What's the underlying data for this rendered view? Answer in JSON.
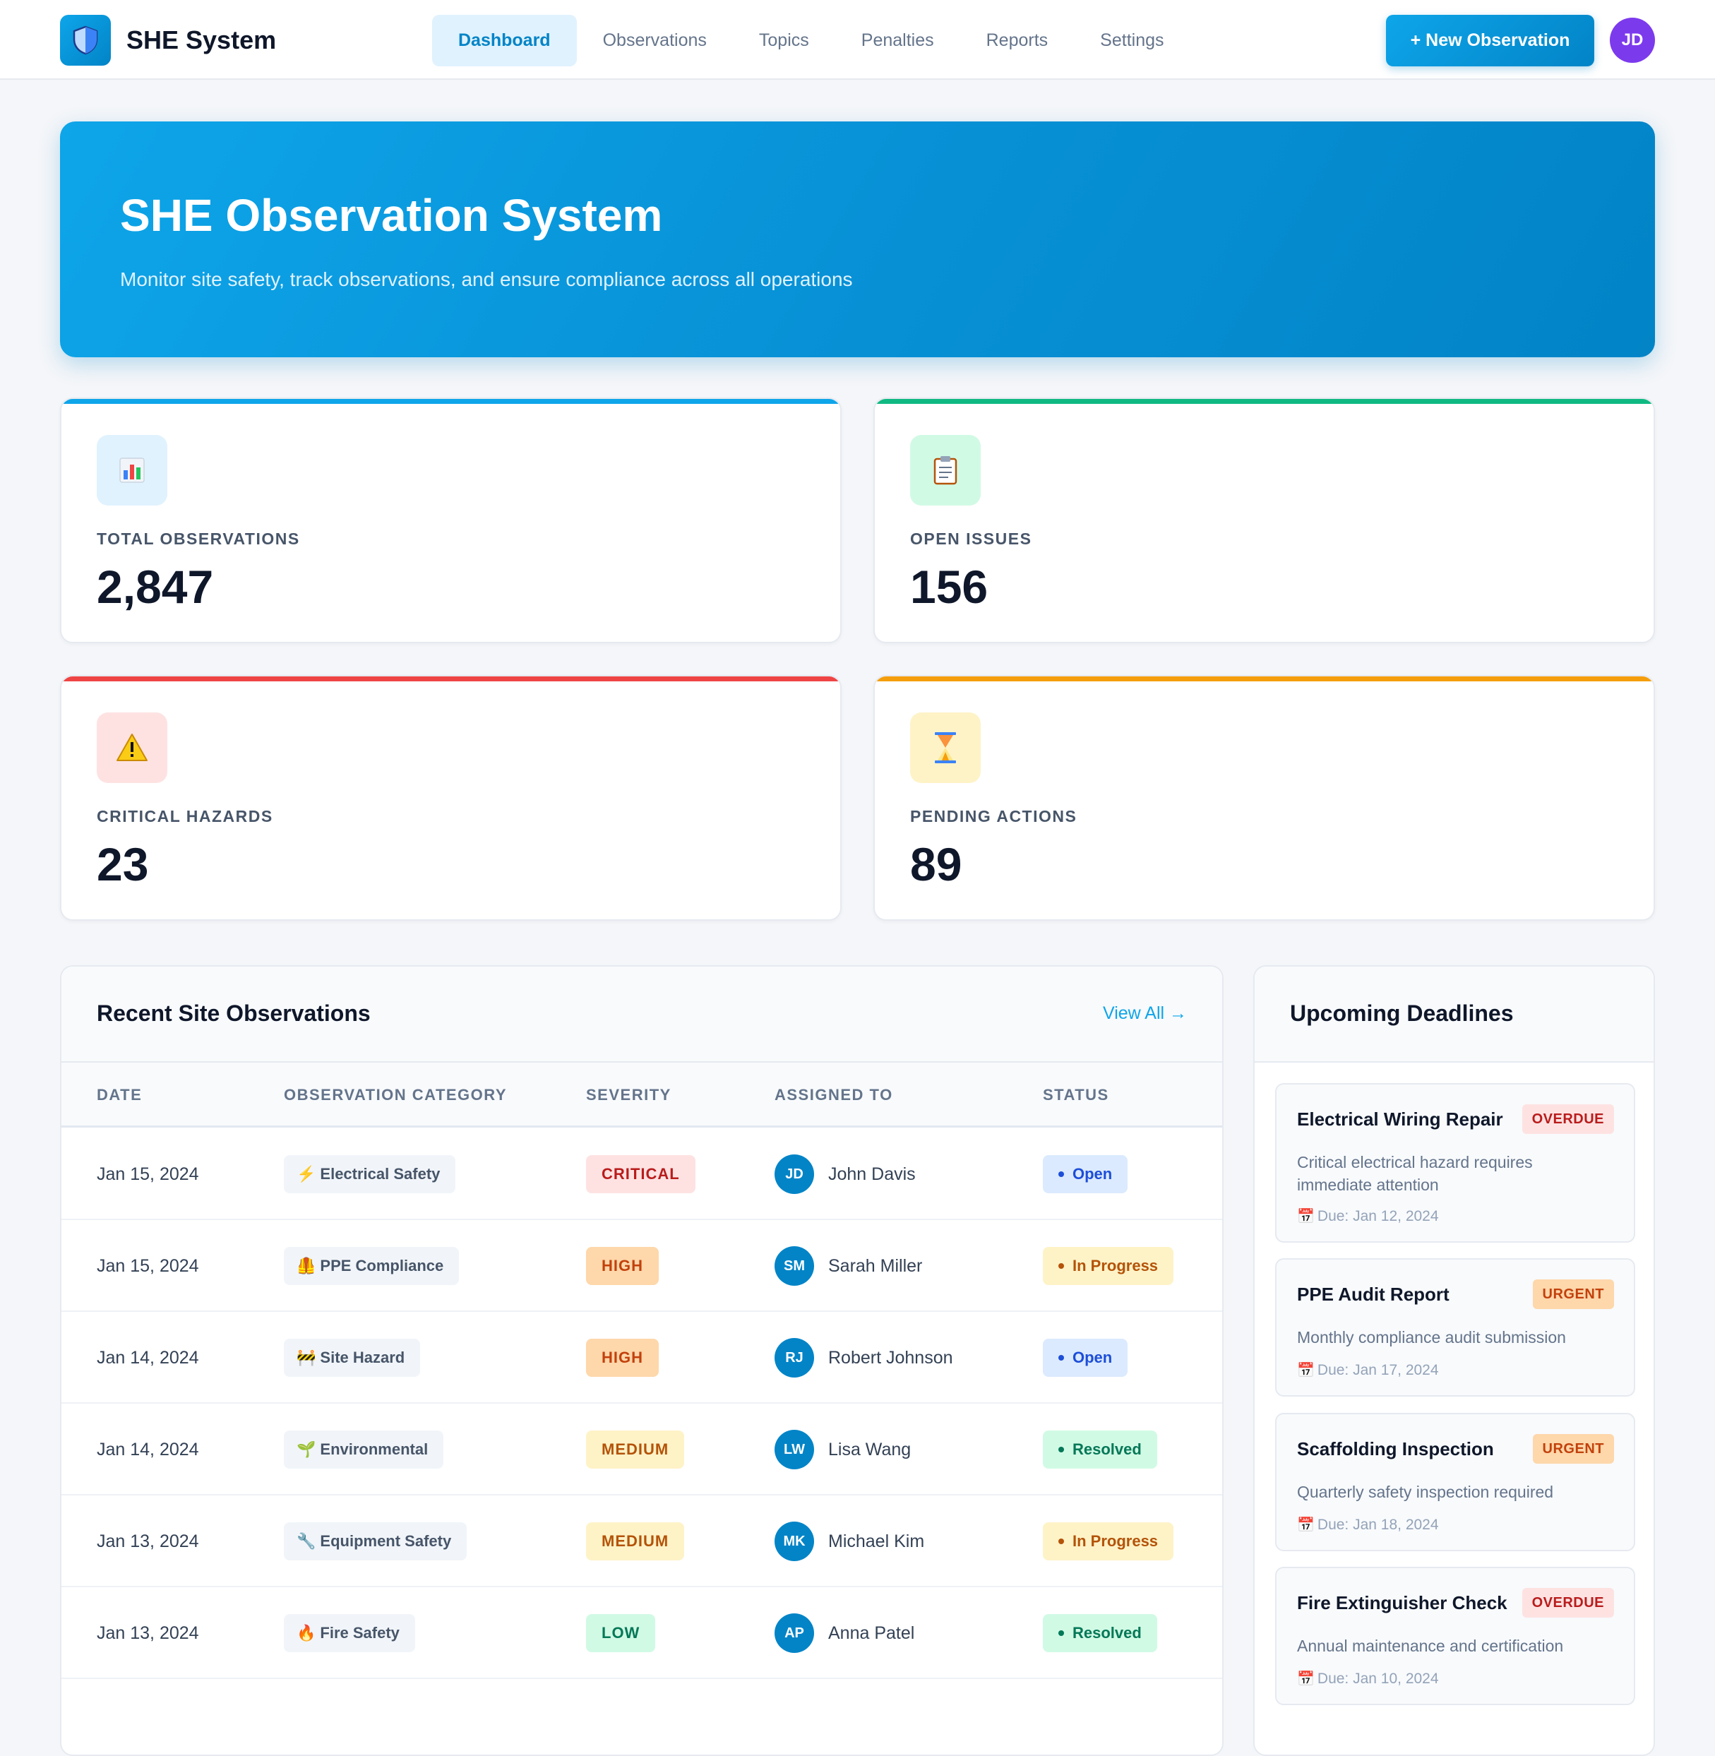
{
  "brand": {
    "name": "SHE System",
    "logo_icon": "shield-icon"
  },
  "nav": {
    "tabs": [
      {
        "label": "Dashboard",
        "active": true
      },
      {
        "label": "Observations",
        "active": false
      },
      {
        "label": "Topics",
        "active": false
      },
      {
        "label": "Penalties",
        "active": false
      },
      {
        "label": "Reports",
        "active": false
      },
      {
        "label": "Settings",
        "active": false
      }
    ],
    "new_button": "+ New Observation",
    "user_initials": "JD"
  },
  "hero": {
    "title": "SHE Observation System",
    "subtitle": "Monitor site safety, track observations, and ensure compliance across all operations"
  },
  "stats": [
    {
      "label": "TOTAL OBSERVATIONS",
      "value": "2,847",
      "icon": "bar-chart-icon",
      "accent": "#0ea5e9",
      "icon_bg": "#e0f2fe"
    },
    {
      "label": "OPEN ISSUES",
      "value": "156",
      "icon": "clipboard-icon",
      "accent": "#10b981",
      "icon_bg": "#d1fae5"
    },
    {
      "label": "CRITICAL HAZARDS",
      "value": "23",
      "icon": "warning-icon",
      "accent": "#ef4444",
      "icon_bg": "#fee2e2"
    },
    {
      "label": "PENDING ACTIONS",
      "value": "89",
      "icon": "hourglass-icon",
      "accent": "#f59e0b",
      "icon_bg": "#fef3c7"
    }
  ],
  "observations": {
    "title": "Recent Site Observations",
    "view_all": "View All →",
    "columns": [
      "DATE",
      "OBSERVATION CATEGORY",
      "SEVERITY",
      "ASSIGNED TO",
      "STATUS"
    ],
    "rows": [
      {
        "date": "Jan 15, 2024",
        "category": "Electrical Safety",
        "category_icon": "⚡",
        "severity": "CRITICAL",
        "assignee_initials": "JD",
        "assignee": "John Davis",
        "status": "Open"
      },
      {
        "date": "Jan 15, 2024",
        "category": "PPE Compliance",
        "category_icon": "🦺",
        "severity": "HIGH",
        "assignee_initials": "SM",
        "assignee": "Sarah Miller",
        "status": "In Progress"
      },
      {
        "date": "Jan 14, 2024",
        "category": "Site Hazard",
        "category_icon": "🚧",
        "severity": "HIGH",
        "assignee_initials": "RJ",
        "assignee": "Robert Johnson",
        "status": "Open"
      },
      {
        "date": "Jan 14, 2024",
        "category": "Environmental",
        "category_icon": "🌱",
        "severity": "MEDIUM",
        "assignee_initials": "LW",
        "assignee": "Lisa Wang",
        "status": "Resolved"
      },
      {
        "date": "Jan 13, 2024",
        "category": "Equipment Safety",
        "category_icon": "🔧",
        "severity": "MEDIUM",
        "assignee_initials": "MK",
        "assignee": "Michael Kim",
        "status": "In Progress"
      },
      {
        "date": "Jan 13, 2024",
        "category": "Fire Safety",
        "category_icon": "🔥",
        "severity": "LOW",
        "assignee_initials": "AP",
        "assignee": "Anna Patel",
        "status": "Resolved"
      }
    ]
  },
  "severity_colors": {
    "CRITICAL": {
      "bg": "#fee2e2",
      "fg": "#b91c1c"
    },
    "HIGH": {
      "bg": "#fed7aa",
      "fg": "#c2410c"
    },
    "MEDIUM": {
      "bg": "#fef3c7",
      "fg": "#b45309"
    },
    "LOW": {
      "bg": "#d1fae5",
      "fg": "#047857"
    }
  },
  "status_colors": {
    "Open": {
      "bg": "#dbeafe",
      "fg": "#1d4ed8"
    },
    "In Progress": {
      "bg": "#fef3c7",
      "fg": "#b45309"
    },
    "Resolved": {
      "bg": "#d1fae5",
      "fg": "#047857"
    }
  },
  "deadlines": {
    "title": "Upcoming Deadlines",
    "items": [
      {
        "title": "Electrical Wiring Repair",
        "tag": "OVERDUE",
        "desc": "Critical electrical hazard requires immediate attention",
        "due": "Due: Jan 12, 2024"
      },
      {
        "title": "PPE Audit Report",
        "tag": "URGENT",
        "desc": "Monthly compliance audit submission",
        "due": "Due: Jan 17, 2024"
      },
      {
        "title": "Scaffolding Inspection",
        "tag": "URGENT",
        "desc": "Quarterly safety inspection required",
        "due": "Due: Jan 18, 2024"
      },
      {
        "title": "Fire Extinguisher Check",
        "tag": "OVERDUE",
        "desc": "Annual maintenance and certification",
        "due": "Due: Jan 10, 2024"
      }
    ]
  },
  "tag_colors": {
    "OVERDUE": {
      "bg": "#fee2e2",
      "fg": "#b91c1c"
    },
    "URGENT": {
      "bg": "#fed7aa",
      "fg": "#c2410c"
    }
  },
  "avatar_color": "#0284c7"
}
